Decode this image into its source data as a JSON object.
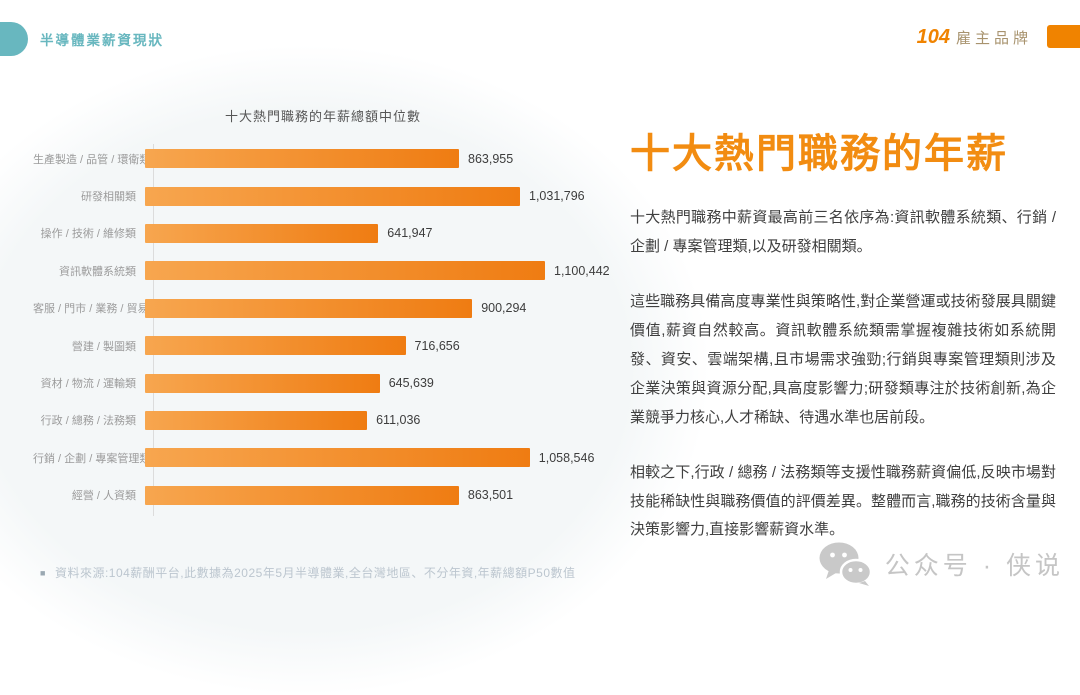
{
  "header": {
    "section_label": "半導體業薪資現狀",
    "brand_number": "104",
    "brand_label": "雇主品牌"
  },
  "chart_data": {
    "type": "bar",
    "orientation": "horizontal",
    "title": "十大熱門職務的年薪總額中位數",
    "categories": [
      "生產製造 / 品管 / 環衛類",
      "研發相關類",
      "操作 / 技術 / 維修類",
      "資訊軟體系統類",
      "客服 / 門市 / 業務 / 貿易類",
      "營建 / 製圖類",
      "資材 / 物流 / 運輸類",
      "行政 / 總務 / 法務類",
      "行銷 / 企劃 / 專案管理類",
      "經營 / 人資類"
    ],
    "values": [
      863955,
      1031796,
      641947,
      1100442,
      900294,
      716656,
      645639,
      611036,
      1058546,
      863501
    ],
    "value_labels": [
      "863,955",
      "1,031,796",
      "641,947",
      "1,100,442",
      "900,294",
      "716,656",
      "645,639",
      "611,036",
      "1,058,546",
      "863,501"
    ],
    "xlim": [
      0,
      1100442
    ],
    "grid": false,
    "legend": false
  },
  "article": {
    "title": "十大熱門職務的年薪",
    "paragraphs": [
      "十大熱門職務中薪資最高前三名依序為:資訊軟體系統類、行銷 / 企劃 / 專案管理類,以及研發相關類。",
      "這些職務具備高度專業性與策略性,對企業營運或技術發展具關鍵價值,薪資自然較高。資訊軟體系統類需掌握複雜技術如系統開發、資安、雲端架構,且市場需求強勁;行銷與專案管理類則涉及企業決策與資源分配,具高度影響力;研發類專注於技術創新,為企業競爭力核心,人才稀缺、待遇水準也居前段。",
      "相較之下,行政 / 總務 / 法務類等支援性職務薪資偏低,反映市場對技能稀缺性與職務價值的評價差異。整體而言,職務的技術含量與決策影響力,直接影響薪資水準。"
    ]
  },
  "footnote": {
    "bullet": "■",
    "text": "資料來源:104薪酬平台,此數據為2025年5月半導體業,全台灣地區、不分年資,年薪總額P50數值"
  },
  "watermark": {
    "icon": "wechat-icon",
    "text": "公众号 · 侠说"
  },
  "colors": {
    "teal": "#68B7BF",
    "orange_title": "#F28C11",
    "logo_orange": "#F08300",
    "bar_gradient_start": "#F7A64F",
    "bar_gradient_end": "#EF7C12",
    "bar_value_text": "#3D3D3D",
    "category_label": "#9B9B9B",
    "body_text": "#3F3F3F",
    "footnote_text": "#BCC6CF",
    "watermark_text": "#C5C5C5"
  }
}
